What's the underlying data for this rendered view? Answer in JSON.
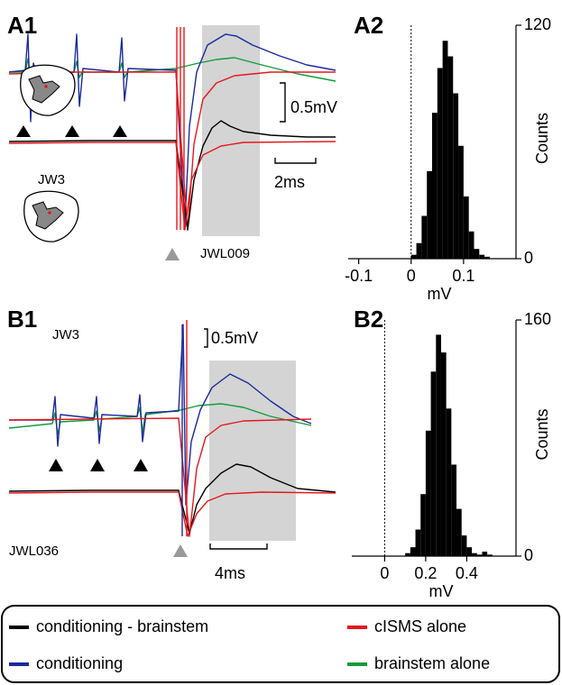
{
  "chart_data": [
    {
      "type": "histogram",
      "title": "A2",
      "xlabel": "mV",
      "ylabel": "Counts",
      "color": "#000000",
      "bins": [
        0,
        0.01,
        0.02,
        0.03,
        0.04,
        0.05,
        0.06,
        0.07,
        0.08,
        0.09,
        0.1,
        0.11,
        0.12,
        0.13,
        0.14,
        0.15
      ],
      "values": [
        2,
        8,
        22,
        45,
        75,
        98,
        112,
        104,
        85,
        58,
        32,
        14,
        5,
        2,
        1
      ],
      "xlim": [
        -0.12,
        0.2
      ],
      "xticks": [
        -0.1,
        0,
        0.1
      ],
      "ylim": [
        0,
        120
      ],
      "yticks": [
        0,
        120
      ],
      "vline": 0
    },
    {
      "type": "histogram",
      "title": "B2",
      "xlabel": "mV",
      "ylabel": "Counts",
      "color": "#000000",
      "bins": [
        0.1,
        0.125,
        0.15,
        0.175,
        0.2,
        0.225,
        0.25,
        0.275,
        0.3,
        0.325,
        0.35,
        0.375,
        0.4,
        0.425,
        0.45,
        0.475,
        0.5,
        0.525
      ],
      "values": [
        2,
        6,
        18,
        42,
        85,
        125,
        150,
        138,
        100,
        62,
        32,
        14,
        6,
        2,
        1,
        3,
        1
      ],
      "xlim": [
        -0.16,
        0.64
      ],
      "xticks": [
        0,
        0.2,
        0.4
      ],
      "ylim": [
        0,
        160
      ],
      "yticks": [
        0,
        160
      ],
      "vline": 0
    }
  ],
  "figure": {
    "panel_a1": {
      "label": "A1",
      "subject": "JW3",
      "file": "JWL009",
      "amplitude_scale": "0.5mV",
      "time_scale": "2ms"
    },
    "panel_b1": {
      "label": "B1",
      "subject": "JW3",
      "file": "JWL036",
      "amplitude_scale": "0.5mV",
      "time_scale": "4ms"
    },
    "legend": [
      {
        "name": "conditioning - brainstem",
        "color": "#000000"
      },
      {
        "name": "conditioning",
        "color": "#1b2a9c"
      },
      {
        "name": "cISMS alone",
        "color": "#e3191c"
      },
      {
        "name": "brainstem alone",
        "color": "#0f9d3a"
      }
    ]
  }
}
